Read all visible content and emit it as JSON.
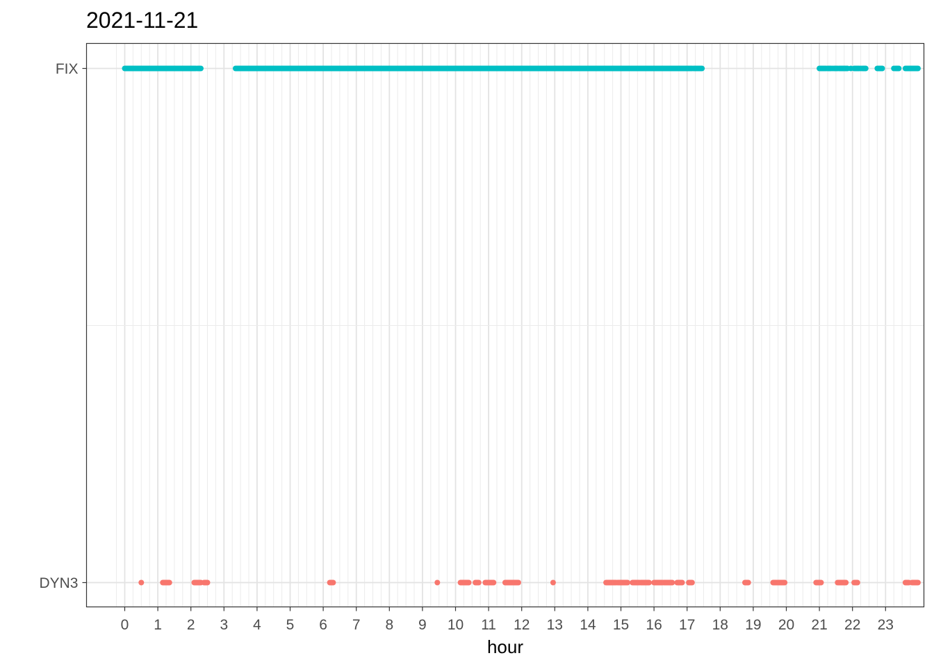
{
  "chart_data": {
    "type": "scatter",
    "title": "2021-11-21",
    "xlabel": "hour",
    "ylabel": "",
    "xlim": [
      -0.45,
      23.98
    ],
    "x_ticks": [
      0,
      1,
      2,
      3,
      4,
      5,
      6,
      7,
      8,
      9,
      10,
      11,
      12,
      13,
      14,
      15,
      16,
      17,
      18,
      19,
      20,
      21,
      22,
      23
    ],
    "x_tick_labels": [
      "0",
      "1",
      "2",
      "3",
      "4",
      "5",
      "6",
      "7",
      "8",
      "9",
      "10",
      "11",
      "12",
      "13",
      "14",
      "15",
      "16",
      "17",
      "18",
      "19",
      "20",
      "21",
      "22",
      "23"
    ],
    "minor_grid_step": 0.25,
    "categories": [
      "DYN3",
      "FIX"
    ],
    "grid": true,
    "legend": "none",
    "series": [
      {
        "category": "FIX",
        "color": "#00BFC4",
        "segments": [
          [
            0.0,
            2.15
          ],
          [
            2.2,
            2.3
          ],
          [
            3.35,
            17.15
          ],
          [
            17.2,
            17.45
          ],
          [
            21.0,
            21.2
          ],
          [
            21.25,
            21.35
          ],
          [
            21.45,
            21.55
          ],
          [
            21.6,
            21.85
          ],
          [
            22.05,
            22.2
          ],
          [
            22.3,
            22.4
          ],
          [
            22.75,
            22.9
          ],
          [
            23.3,
            23.4
          ],
          [
            23.6,
            23.98
          ]
        ],
        "points": [
          0.32,
          0.45,
          3.58,
          3.62,
          17.05,
          17.1,
          21.4,
          21.95,
          22.25,
          23.25
        ]
      },
      {
        "category": "DYN3",
        "color": "#F8766D",
        "segments": [
          [
            1.15,
            1.35
          ],
          [
            2.1,
            2.3
          ],
          [
            2.4,
            2.5
          ],
          [
            6.2,
            6.3
          ],
          [
            10.15,
            10.4
          ],
          [
            10.6,
            10.7
          ],
          [
            10.9,
            11.15
          ],
          [
            11.5,
            11.9
          ],
          [
            14.55,
            14.85
          ],
          [
            14.9,
            15.2
          ],
          [
            15.35,
            15.55
          ],
          [
            15.6,
            15.85
          ],
          [
            16.0,
            16.25
          ],
          [
            16.3,
            16.55
          ],
          [
            16.7,
            16.85
          ],
          [
            17.05,
            17.15
          ],
          [
            18.75,
            18.85
          ],
          [
            19.6,
            19.95
          ],
          [
            20.9,
            21.05
          ],
          [
            21.55,
            21.8
          ],
          [
            22.05,
            22.15
          ],
          [
            23.6,
            23.7
          ],
          [
            23.8,
            23.98
          ]
        ],
        "points": [
          0.5,
          9.45,
          12.95
        ]
      }
    ]
  }
}
